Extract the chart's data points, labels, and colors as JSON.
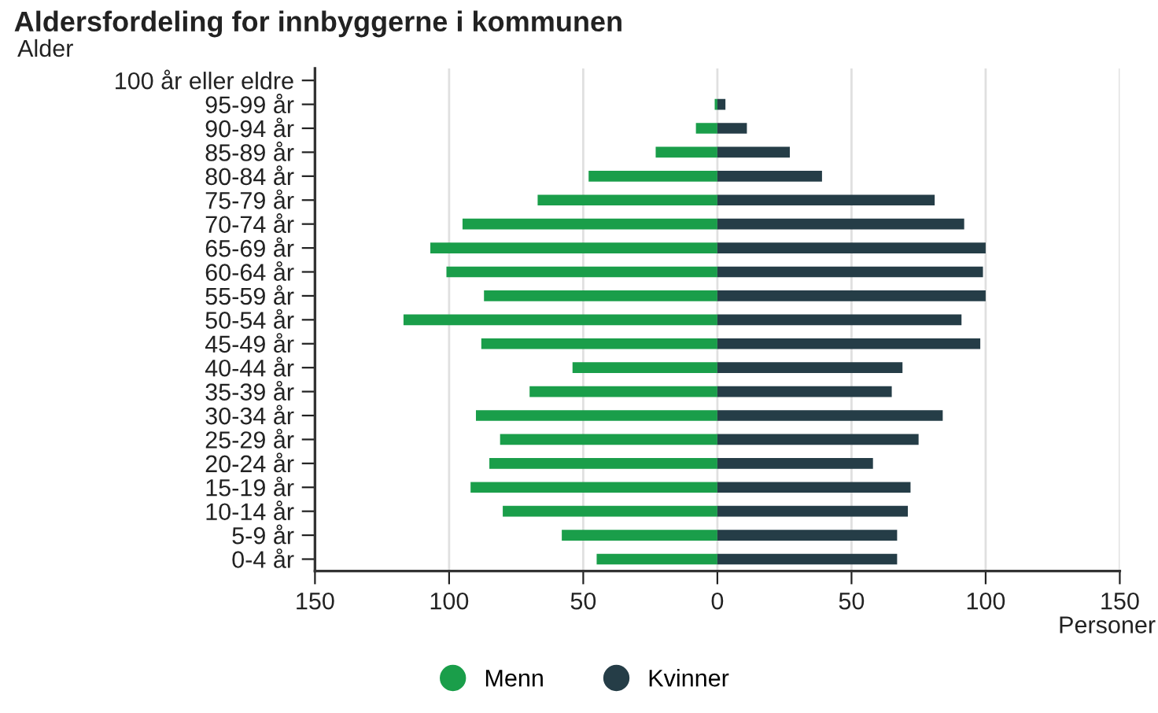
{
  "chart_data": {
    "type": "bar",
    "orientation": "horizontal",
    "title": "Aldersfordeling for innbyggerne i kommunen",
    "ylabel": "Alder",
    "xlabel": "Personer",
    "categories": [
      "100 år eller eldre",
      "95-99 år",
      "90-94 år",
      "85-89 år",
      "80-84 år",
      "75-79 år",
      "70-74 år",
      "65-69 år",
      "60-64 år",
      "55-59 år",
      "50-54 år",
      "45-49 år",
      "40-44 år",
      "35-39 år",
      "30-34 år",
      "25-29 år",
      "20-24 år",
      "15-19 år",
      "10-14 år",
      "5-9 år",
      "0-4 år"
    ],
    "series": [
      {
        "name": "Menn",
        "color": "#1a9e4a",
        "values": [
          0,
          -1,
          -8,
          -23,
          -48,
          -67,
          -95,
          -107,
          -101,
          -87,
          -117,
          -88,
          -54,
          -70,
          -90,
          -81,
          -85,
          -92,
          -80,
          -58,
          -45
        ]
      },
      {
        "name": "Kvinner",
        "color": "#253d47",
        "values": [
          0,
          3,
          11,
          27,
          39,
          81,
          92,
          100,
          99,
          100,
          91,
          98,
          69,
          65,
          84,
          75,
          58,
          72,
          71,
          67,
          67
        ]
      }
    ],
    "xlim": [
      -150,
      150
    ],
    "xticks": [
      {
        "value": -150,
        "label": "150"
      },
      {
        "value": -100,
        "label": "100"
      },
      {
        "value": -50,
        "label": "50"
      },
      0,
      50,
      100,
      150
    ],
    "grid": "x",
    "legend": "bottom",
    "stacked": true
  }
}
